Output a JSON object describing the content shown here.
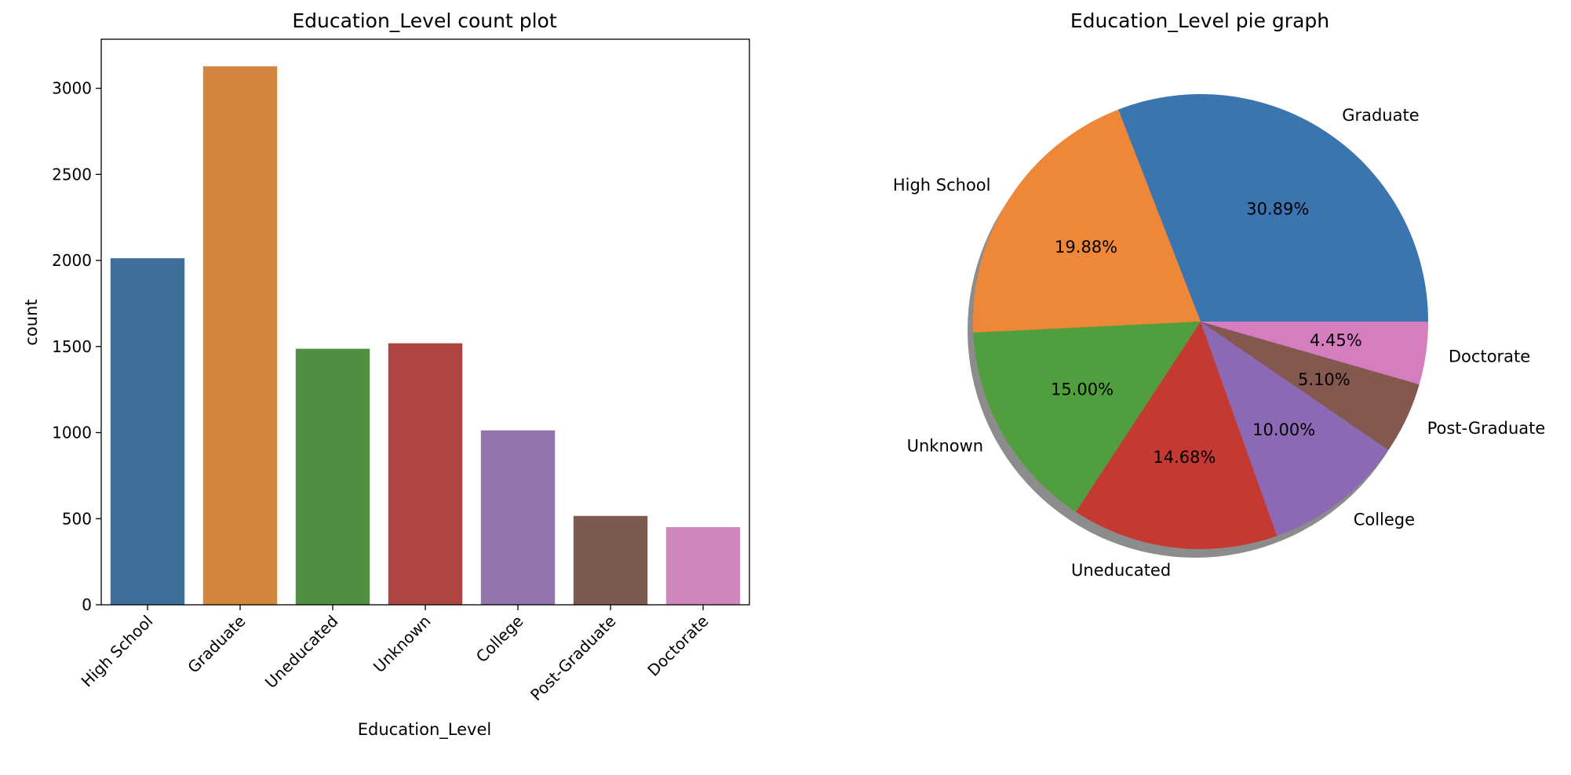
{
  "chart_data": [
    {
      "type": "bar",
      "title": "Education_Level count plot",
      "xlabel": "Education_Level",
      "ylabel": "count",
      "categories": [
        "High School",
        "Graduate",
        "Uneducated",
        "Unknown",
        "College",
        "Post-Graduate",
        "Doctorate"
      ],
      "values": [
        2013,
        3128,
        1487,
        1519,
        1013,
        516,
        451
      ],
      "colors": [
        "#3f6e99",
        "#d3843e",
        "#4f8f42",
        "#af4541",
        "#9174ae",
        "#7c5a50",
        "#cd87bc"
      ],
      "yticks": [
        0,
        500,
        1000,
        1500,
        2000,
        2500,
        3000
      ],
      "ylim": [
        0,
        3285
      ],
      "grid": false
    },
    {
      "type": "pie",
      "title": "Education_Level pie graph",
      "labels": [
        "Graduate",
        "High School",
        "Unknown",
        "Uneducated",
        "College",
        "Post-Graduate",
        "Doctorate"
      ],
      "values": [
        30.89,
        19.88,
        15.0,
        14.68,
        10.0,
        5.1,
        4.45
      ],
      "pct_labels": [
        "30.89%",
        "19.88%",
        "15.00%",
        "14.68%",
        "10.00%",
        "5.10%",
        "4.45%"
      ],
      "colors": [
        "#3a75af",
        "#ee8737",
        "#519e3e",
        "#c43a32",
        "#8c69b4",
        "#84584e",
        "#d57dbf"
      ],
      "shadow": true
    }
  ]
}
